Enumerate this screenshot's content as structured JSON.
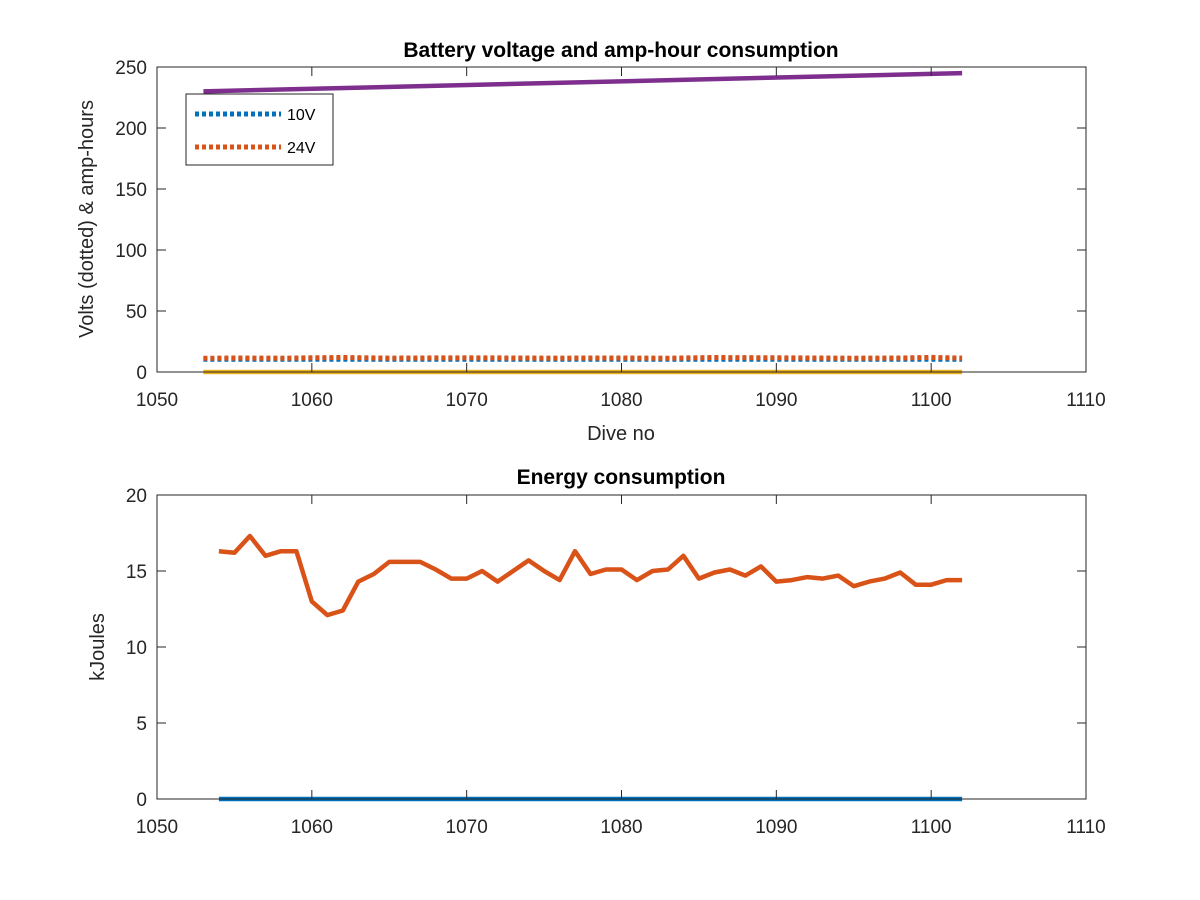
{
  "chart_data": [
    {
      "type": "line",
      "title": "Battery voltage and amp-hour consumption",
      "xlabel": "Dive no",
      "ylabel": "Volts (dotted) & amp-hours",
      "xlim": [
        1050,
        1110
      ],
      "ylim": [
        0,
        250
      ],
      "xticks": [
        1050,
        1060,
        1070,
        1080,
        1090,
        1100,
        1110
      ],
      "yticks": [
        0,
        50,
        100,
        150,
        200,
        250
      ],
      "grid": false,
      "legend_position": "top-left",
      "series": [
        {
          "name": "10V",
          "color": "#0072BD",
          "style": "dotted",
          "x": [
            1053,
            1102
          ],
          "y": [
            10.5,
            10.5
          ]
        },
        {
          "name": "24V",
          "color": "#D95319",
          "style": "dotted",
          "x": [
            1053,
            1055,
            1058,
            1060,
            1062,
            1065,
            1070,
            1075,
            1080,
            1083,
            1086,
            1090,
            1095,
            1098,
            1100,
            1102
          ],
          "y": [
            11.2,
            11.5,
            11.3,
            11.6,
            11.9,
            11.4,
            11.6,
            11.4,
            11.5,
            11.3,
            11.9,
            11.6,
            11.3,
            11.5,
            12.0,
            11.4
          ]
        },
        {
          "color": "#EDB120",
          "style": "solid",
          "x": [
            1053,
            1102
          ],
          "y": [
            0,
            0
          ]
        },
        {
          "color": "#7E2F8E",
          "style": "solid",
          "x": [
            1053,
            1102
          ],
          "y": [
            230,
            245
          ]
        }
      ]
    },
    {
      "type": "line",
      "title": "Energy consumption",
      "xlabel": "",
      "ylabel": "kJoules",
      "xlim": [
        1050,
        1110
      ],
      "ylim": [
        0,
        20
      ],
      "xticks": [
        1050,
        1060,
        1070,
        1080,
        1090,
        1100,
        1110
      ],
      "yticks": [
        0,
        5,
        10,
        15,
        20
      ],
      "grid": false,
      "series": [
        {
          "color": "#D95319",
          "style": "solid",
          "x": [
            1054,
            1055,
            1056,
            1057,
            1058,
            1059,
            1060,
            1061,
            1062,
            1063,
            1064,
            1065,
            1066,
            1067,
            1068,
            1069,
            1070,
            1071,
            1072,
            1073,
            1074,
            1075,
            1076,
            1077,
            1078,
            1079,
            1080,
            1081,
            1082,
            1083,
            1084,
            1085,
            1086,
            1087,
            1088,
            1089,
            1090,
            1091,
            1092,
            1093,
            1094,
            1095,
            1096,
            1097,
            1098,
            1099,
            1100,
            1101,
            1102
          ],
          "y": [
            16.3,
            16.2,
            17.3,
            16.0,
            16.3,
            16.3,
            13.0,
            12.1,
            12.4,
            14.3,
            14.8,
            15.6,
            15.6,
            15.6,
            15.1,
            14.5,
            14.5,
            15.0,
            14.3,
            15.0,
            15.7,
            15.0,
            14.4,
            16.3,
            14.8,
            15.1,
            15.1,
            14.4,
            15.0,
            15.1,
            16.0,
            14.5,
            14.9,
            15.1,
            14.7,
            15.3,
            14.3,
            14.4,
            14.6,
            14.5,
            14.7,
            14.0,
            14.3,
            14.5,
            14.9,
            14.1,
            14.1,
            14.4,
            14.4
          ]
        },
        {
          "color": "#0072BD",
          "style": "solid",
          "x": [
            1054,
            1102
          ],
          "y": [
            0,
            0
          ]
        }
      ]
    }
  ]
}
